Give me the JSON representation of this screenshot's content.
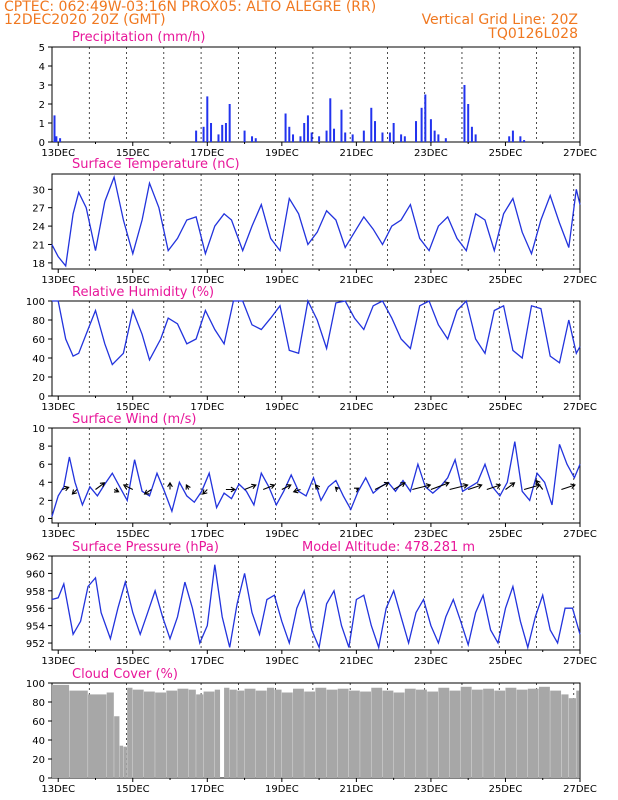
{
  "header": {
    "line1_left": "CPTEC:   062:49W-03:16N   PROX05: ALTO ALEGRE (RR)",
    "line2_left": "12DEC2020 20Z (GMT)",
    "line2_right": "Vertical Grid Line: 20Z",
    "line3_right": "TQ0126L028"
  },
  "x_axis": {
    "tick_labels": [
      "13DEC",
      "15DEC",
      "17DEC",
      "19DEC",
      "21DEC",
      "23DEC",
      "25DEC",
      "27DEC"
    ],
    "tick_days": [
      13,
      15,
      17,
      19,
      21,
      23,
      25,
      27
    ],
    "range_days": [
      12.833,
      27.0
    ],
    "grid_days": [
      12.833,
      13.833,
      14.833,
      15.833,
      16.833,
      17.833,
      18.833,
      19.833,
      20.833,
      21.833,
      22.833,
      23.833,
      24.833,
      25.833,
      26.833
    ]
  },
  "colors": {
    "header": "#f07820",
    "title": "#e8179a",
    "series": "#2233dd",
    "cloud": "#a7a7a7"
  },
  "panels": {
    "precip": {
      "title": "Precipitation (mm/h)"
    },
    "temp": {
      "title": "Surface Temperature (nC)"
    },
    "rh": {
      "title": "Relative Humidity (%)"
    },
    "wind": {
      "title": "Surface Wind (m/s)"
    },
    "pres": {
      "title": "Surface Pressure (hPa)",
      "extra": "Model Altitude: 478.281  m"
    },
    "cloud": {
      "title": "Cloud Cover (%)"
    }
  },
  "chart_data": [
    {
      "type": "bar",
      "key": "precip",
      "title": "Precipitation (mm/h)",
      "ylim": [
        0,
        5
      ],
      "yticks": [
        0,
        1,
        2,
        3,
        4,
        5
      ],
      "grid": "vertical dotted",
      "x_days": [
        12.9,
        12.95,
        13.05,
        16.7,
        16.9,
        17.0,
        17.1,
        17.3,
        17.4,
        17.5,
        17.6,
        18.0,
        18.2,
        18.3,
        19.1,
        19.2,
        19.3,
        19.5,
        19.6,
        19.7,
        19.8,
        20.0,
        20.2,
        20.3,
        20.4,
        20.6,
        20.7,
        20.9,
        21.2,
        21.4,
        21.5,
        21.7,
        21.9,
        22.0,
        22.2,
        22.3,
        22.6,
        22.75,
        22.85,
        23.0,
        23.1,
        23.2,
        23.4,
        23.9,
        24.0,
        24.1,
        24.2,
        25.1,
        25.2,
        25.4,
        25.5
      ],
      "values": [
        1.4,
        0.3,
        0.2,
        0.6,
        0.8,
        2.4,
        1.0,
        0.4,
        0.9,
        1.0,
        2.0,
        0.6,
        0.3,
        0.2,
        1.5,
        0.8,
        0.4,
        0.3,
        1.0,
        1.4,
        0.5,
        0.3,
        0.6,
        2.3,
        0.7,
        1.7,
        0.5,
        0.4,
        0.6,
        1.8,
        1.1,
        0.5,
        0.5,
        1.0,
        0.4,
        0.3,
        1.1,
        1.8,
        2.5,
        1.2,
        0.6,
        0.4,
        0.2,
        3.0,
        2.0,
        0.8,
        0.4,
        0.3,
        0.6,
        0.3,
        0.1
      ]
    },
    {
      "type": "line",
      "key": "temp",
      "title": "Surface Temperature (nC)",
      "ylim": [
        17,
        32.5
      ],
      "yticks": [
        18,
        21,
        24,
        27,
        30
      ],
      "x": [
        12.83,
        13.0,
        13.2,
        13.4,
        13.55,
        13.75,
        14.0,
        14.25,
        14.5,
        14.75,
        15.0,
        15.25,
        15.45,
        15.7,
        15.95,
        16.2,
        16.45,
        16.7,
        16.95,
        17.2,
        17.45,
        17.65,
        17.95,
        18.2,
        18.45,
        18.7,
        18.95,
        19.2,
        19.45,
        19.7,
        19.95,
        20.2,
        20.45,
        20.7,
        20.95,
        21.2,
        21.45,
        21.7,
        21.95,
        22.2,
        22.45,
        22.7,
        22.95,
        23.2,
        23.45,
        23.7,
        23.95,
        24.2,
        24.45,
        24.7,
        24.95,
        25.2,
        25.45,
        25.7,
        25.95,
        26.2,
        26.45,
        26.7,
        26.9,
        27.0
      ],
      "values": [
        21.0,
        19.0,
        17.5,
        26.0,
        29.5,
        27.0,
        20.0,
        28.0,
        32.0,
        25.0,
        19.5,
        25.0,
        31.0,
        27.0,
        20.0,
        22.0,
        25.0,
        25.5,
        19.5,
        24.0,
        26.0,
        25.0,
        20.0,
        24.0,
        27.5,
        22.0,
        20.0,
        28.5,
        26.0,
        21.0,
        23.0,
        26.5,
        25.0,
        20.5,
        23.0,
        25.5,
        23.5,
        21.0,
        24.0,
        25.0,
        27.5,
        22.0,
        20.0,
        24.0,
        25.5,
        22.0,
        20.0,
        26.0,
        25.0,
        20.0,
        26.0,
        28.5,
        23.0,
        19.5,
        25.0,
        29.0,
        24.5,
        20.5,
        30.0,
        27.5
      ]
    },
    {
      "type": "line",
      "key": "rh",
      "title": "Relative Humidity (%)",
      "ylim": [
        0,
        100
      ],
      "yticks": [
        0,
        20,
        40,
        60,
        80,
        100
      ],
      "x": [
        12.83,
        13.0,
        13.2,
        13.4,
        13.55,
        13.8,
        14.0,
        14.25,
        14.45,
        14.75,
        15.0,
        15.25,
        15.45,
        15.75,
        15.95,
        16.2,
        16.45,
        16.7,
        16.95,
        17.2,
        17.45,
        17.7,
        17.95,
        18.2,
        18.45,
        18.7,
        18.95,
        19.2,
        19.45,
        19.7,
        19.95,
        20.2,
        20.45,
        20.7,
        20.95,
        21.2,
        21.45,
        21.7,
        21.95,
        22.2,
        22.45,
        22.7,
        22.95,
        23.2,
        23.45,
        23.7,
        23.95,
        24.2,
        24.45,
        24.7,
        24.95,
        25.2,
        25.45,
        25.7,
        25.95,
        26.2,
        26.45,
        26.7,
        26.9,
        27.0
      ],
      "values": [
        100,
        100,
        60,
        42,
        45,
        70,
        90,
        55,
        33,
        45,
        90,
        65,
        38,
        60,
        82,
        76,
        55,
        60,
        90,
        70,
        55,
        100,
        100,
        75,
        70,
        82,
        95,
        48,
        45,
        100,
        80,
        50,
        98,
        100,
        82,
        70,
        95,
        100,
        82,
        60,
        50,
        95,
        100,
        75,
        60,
        90,
        100,
        60,
        45,
        90,
        95,
        48,
        40,
        95,
        92,
        42,
        35,
        80,
        45,
        52
      ]
    },
    {
      "type": "line",
      "key": "wind",
      "title": "Surface Wind (m/s)",
      "ylim": [
        -0.5,
        10
      ],
      "yticks": [
        0,
        2,
        4,
        6,
        8,
        10
      ],
      "x": [
        12.83,
        13.0,
        13.15,
        13.3,
        13.45,
        13.65,
        13.85,
        14.05,
        14.25,
        14.45,
        14.65,
        14.85,
        15.05,
        15.25,
        15.45,
        15.65,
        15.85,
        16.05,
        16.25,
        16.45,
        16.65,
        16.85,
        17.05,
        17.25,
        17.45,
        17.65,
        17.85,
        18.05,
        18.25,
        18.45,
        18.65,
        18.85,
        19.05,
        19.25,
        19.45,
        19.65,
        19.85,
        20.05,
        20.25,
        20.45,
        20.65,
        20.85,
        21.05,
        21.25,
        21.45,
        21.65,
        21.85,
        22.05,
        22.25,
        22.45,
        22.65,
        22.85,
        23.05,
        23.25,
        23.45,
        23.65,
        23.85,
        24.05,
        24.25,
        24.45,
        24.65,
        24.85,
        25.05,
        25.25,
        25.45,
        25.65,
        25.85,
        26.05,
        26.25,
        26.45,
        26.65,
        26.85,
        27.0
      ],
      "values": [
        0.2,
        2.5,
        3.5,
        6.8,
        4.0,
        1.5,
        3.5,
        2.5,
        3.8,
        5.0,
        3.5,
        2.0,
        6.5,
        3.0,
        2.5,
        5.0,
        3.0,
        0.8,
        4.0,
        2.5,
        1.8,
        3.0,
        5.0,
        1.2,
        2.8,
        2.2,
        3.8,
        3.0,
        1.5,
        5.0,
        3.5,
        1.5,
        3.0,
        4.8,
        3.0,
        2.5,
        4.5,
        2.0,
        3.5,
        4.2,
        2.5,
        1.0,
        3.0,
        4.5,
        2.8,
        3.5,
        4.0,
        3.0,
        4.2,
        3.0,
        6.0,
        3.5,
        2.8,
        3.5,
        4.5,
        6.5,
        3.0,
        3.5,
        4.0,
        6.0,
        3.5,
        2.5,
        4.0,
        8.5,
        3.0,
        2.0,
        5.0,
        4.0,
        1.5,
        8.2,
        6.0,
        4.5,
        6.0
      ],
      "vectors": {
        "x_days": [
          13.1,
          13.5,
          14.0,
          14.5,
          15.0,
          15.5,
          16.0,
          16.5,
          17.0,
          17.5,
          18.0,
          18.5,
          19.0,
          19.5,
          20.0,
          20.5,
          21.0,
          21.5,
          22.0,
          22.5,
          23.0,
          23.5,
          24.0,
          24.5,
          25.0,
          25.5,
          26.0,
          26.5
        ],
        "u": [
          1.5,
          -1.0,
          2.0,
          1.0,
          -2.0,
          -1.5,
          0.0,
          -0.5,
          -1.0,
          2.0,
          2.5,
          2.5,
          2.0,
          -1.5,
          -0.8,
          -0.5,
          0.5,
          3.0,
          2.5,
          4.0,
          4.0,
          4.0,
          3.0,
          3.0,
          2.0,
          3.5,
          -1.5,
          3.0
        ],
        "v": [
          0.5,
          -1.0,
          1.5,
          -0.5,
          1.0,
          -1.0,
          1.5,
          1.0,
          -1.0,
          0.0,
          1.0,
          1.0,
          1.0,
          -0.5,
          1.0,
          0.5,
          0.3,
          1.5,
          1.5,
          1.0,
          1.5,
          1.0,
          1.0,
          1.0,
          1.5,
          1.0,
          2.0,
          1.0
        ]
      }
    },
    {
      "type": "line",
      "key": "pres",
      "title": "Surface Pressure (hPa)",
      "ylim": [
        951.2,
        962
      ],
      "yticks": [
        952,
        954,
        956,
        958,
        960,
        962
      ],
      "x": [
        12.83,
        13.0,
        13.15,
        13.4,
        13.6,
        13.8,
        14.0,
        14.15,
        14.4,
        14.6,
        14.8,
        15.0,
        15.2,
        15.4,
        15.6,
        15.8,
        16.0,
        16.2,
        16.4,
        16.6,
        16.8,
        17.0,
        17.2,
        17.4,
        17.6,
        17.8,
        18.0,
        18.2,
        18.4,
        18.6,
        18.8,
        19.0,
        19.2,
        19.4,
        19.6,
        19.8,
        20.0,
        20.2,
        20.4,
        20.6,
        20.8,
        21.0,
        21.2,
        21.4,
        21.6,
        21.8,
        22.0,
        22.2,
        22.4,
        22.6,
        22.8,
        23.0,
        23.2,
        23.4,
        23.6,
        23.8,
        24.0,
        24.2,
        24.4,
        24.6,
        24.8,
        25.0,
        25.2,
        25.4,
        25.6,
        25.8,
        26.0,
        26.2,
        26.4,
        26.6,
        26.8,
        27.0
      ],
      "values": [
        957.0,
        957.2,
        958.8,
        953.0,
        954.5,
        958.5,
        959.5,
        955.5,
        952.5,
        956.0,
        959.0,
        955.5,
        953.0,
        955.5,
        958.0,
        955.0,
        952.5,
        955.0,
        959.0,
        956.0,
        952.0,
        954.0,
        961.0,
        955.0,
        951.5,
        956.5,
        960.0,
        955.5,
        953.0,
        957.0,
        957.5,
        954.5,
        952.0,
        956.0,
        958.0,
        953.5,
        951.5,
        956.5,
        958.0,
        954.0,
        951.5,
        957.0,
        957.5,
        954.0,
        951.5,
        956.0,
        958.0,
        955.0,
        952.0,
        955.5,
        957.0,
        954.0,
        952.0,
        955.0,
        957.0,
        954.5,
        951.8,
        955.5,
        957.5,
        953.5,
        952.0,
        956.0,
        958.5,
        954.5,
        951.5,
        955.0,
        957.5,
        953.5,
        952.0,
        956.0,
        956.0,
        953.0
      ]
    },
    {
      "type": "bar",
      "key": "cloud",
      "title": "Cloud Cover (%)",
      "ylim": [
        0,
        100
      ],
      "yticks": [
        0,
        20,
        40,
        60,
        80,
        100
      ],
      "x_days": [
        12.83,
        13.3,
        13.8,
        14.3,
        14.5,
        14.65,
        14.75,
        14.85,
        15.0,
        15.3,
        15.6,
        15.9,
        16.2,
        16.5,
        16.7,
        16.9,
        17.2,
        17.35,
        17.45,
        17.6,
        17.8,
        18.0,
        18.3,
        18.6,
        18.8,
        19.0,
        19.3,
        19.6,
        19.9,
        20.2,
        20.5,
        20.8,
        21.1,
        21.4,
        21.7,
        22.0,
        22.3,
        22.6,
        22.9,
        23.2,
        23.5,
        23.8,
        24.1,
        24.4,
        24.7,
        25.0,
        25.3,
        25.6,
        25.9,
        26.2,
        26.5,
        26.7,
        26.9
      ],
      "values": [
        98,
        92,
        88,
        90,
        65,
        34,
        33,
        95,
        93,
        91,
        90,
        92,
        94,
        93,
        88,
        91,
        93,
        0,
        95,
        93,
        92,
        94,
        92,
        95,
        93,
        90,
        94,
        91,
        95,
        93,
        94,
        92,
        91,
        95,
        92,
        90,
        94,
        93,
        91,
        95,
        92,
        96,
        93,
        94,
        92,
        95,
        93,
        94,
        96,
        92,
        88,
        84,
        92
      ]
    }
  ]
}
